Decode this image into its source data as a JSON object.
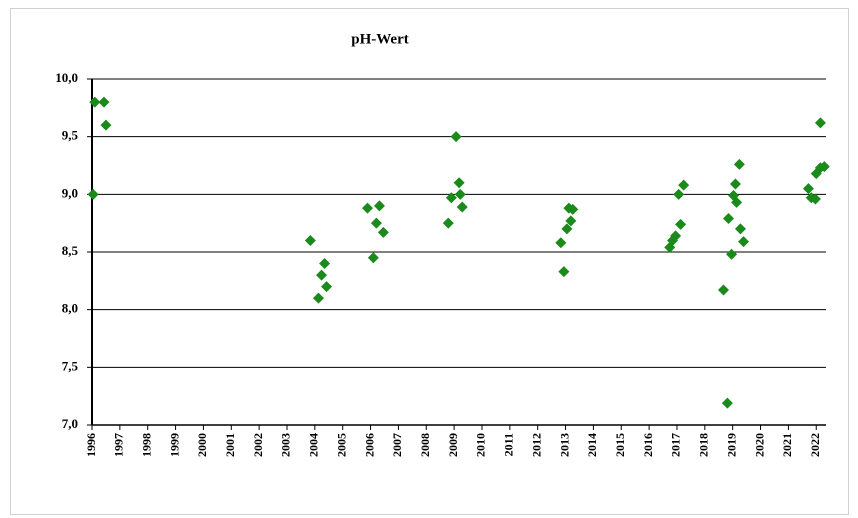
{
  "chart_data": {
    "type": "scatter",
    "title": "pH-Wert",
    "color": "#1a8a1a",
    "grid": true,
    "xlim": [
      1996,
      2022.35
    ],
    "ylim": [
      7.0,
      10.0
    ],
    "xticks": [
      1996,
      1997,
      1998,
      1999,
      2000,
      2001,
      2002,
      2003,
      2004,
      2005,
      2006,
      2007,
      2008,
      2009,
      2010,
      2011,
      2012,
      2013,
      2014,
      2015,
      2016,
      2017,
      2018,
      2019,
      2020,
      2021,
      2022
    ],
    "yticks": [
      {
        "value": 7.0,
        "label": "7,0"
      },
      {
        "value": 7.5,
        "label": "7,5"
      },
      {
        "value": 8.0,
        "label": "8,0"
      },
      {
        "value": 8.5,
        "label": "8,5"
      },
      {
        "value": 9.0,
        "label": "9,0"
      },
      {
        "value": 9.5,
        "label": "9,5"
      },
      {
        "value": 10.0,
        "label": "10,0"
      }
    ],
    "x": [
      1996.04,
      1996.1,
      1996.43,
      1996.5,
      2003.84,
      2004.13,
      2004.24,
      2004.35,
      2004.42,
      2005.89,
      2006.1,
      2006.21,
      2006.32,
      2006.46,
      2008.79,
      2008.9,
      2009.07,
      2009.18,
      2009.22,
      2009.29,
      2012.83,
      2012.94,
      2013.05,
      2013.12,
      2013.19,
      2013.26,
      2016.74,
      2016.84,
      2016.95,
      2017.06,
      2017.13,
      2017.24,
      2018.67,
      2018.81,
      2018.85,
      2018.96,
      2019.03,
      2019.1,
      2019.14,
      2019.24,
      2019.28,
      2019.39,
      2021.72,
      2021.82,
      2021.97,
      2022.0,
      2022.15,
      2022.15,
      2022.29
    ],
    "values": [
      9.0,
      9.8,
      9.8,
      9.6,
      8.6,
      8.1,
      8.3,
      8.4,
      8.2,
      8.88,
      8.45,
      8.75,
      8.9,
      8.67,
      8.75,
      8.97,
      9.5,
      9.1,
      9.0,
      8.89,
      8.58,
      8.33,
      8.7,
      8.88,
      8.77,
      8.87,
      8.54,
      8.6,
      8.64,
      9.0,
      8.74,
      9.08,
      8.17,
      7.19,
      8.79,
      8.48,
      8.99,
      9.09,
      8.93,
      9.26,
      8.7,
      8.59,
      9.05,
      8.97,
      8.96,
      9.18,
      9.62,
      9.23,
      9.24
    ]
  }
}
